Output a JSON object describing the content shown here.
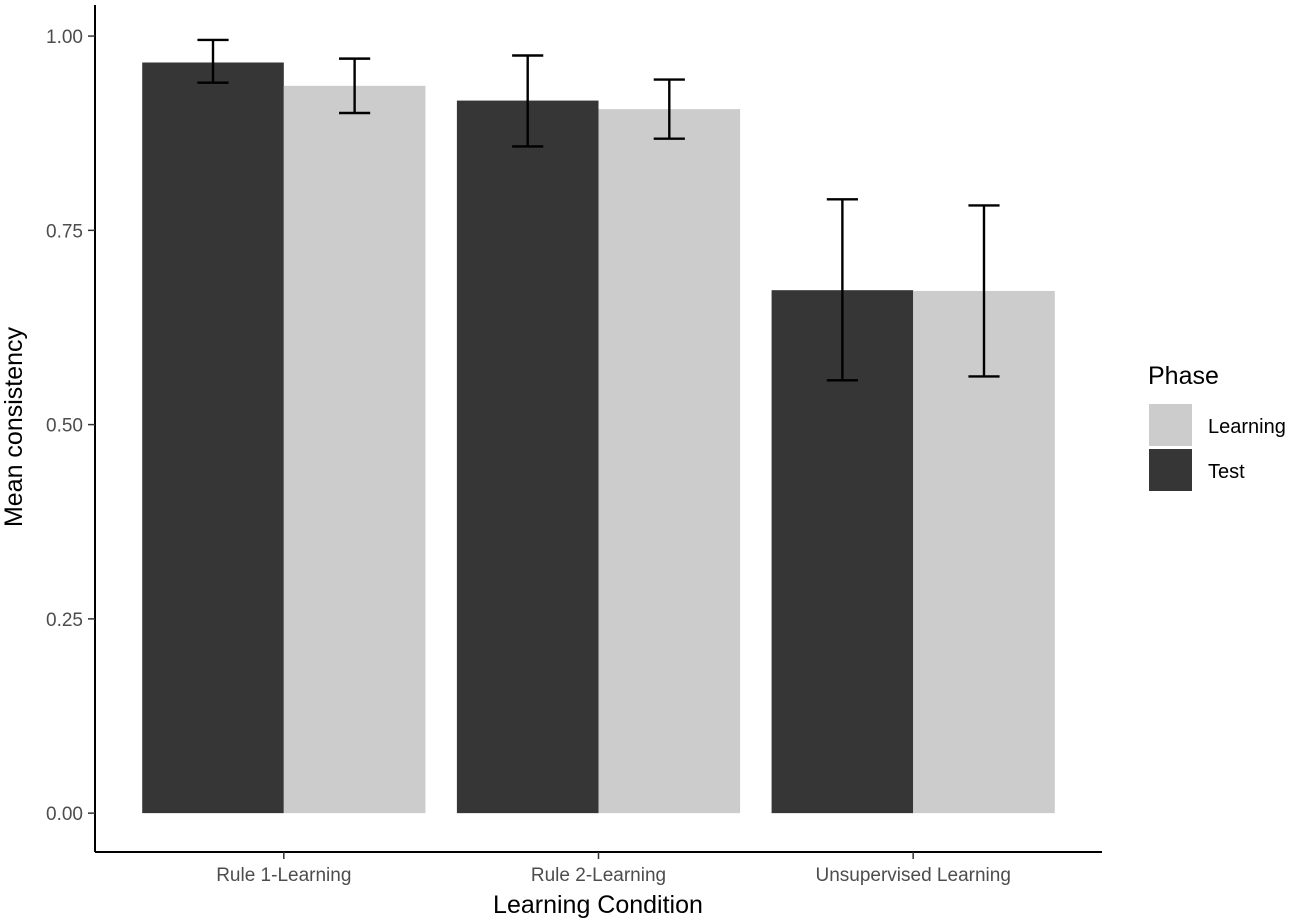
{
  "chart_data": {
    "type": "bar",
    "categories": [
      "Rule 1-Learning",
      "Rule 2-Learning",
      "Unsupervised Learning"
    ],
    "series": [
      {
        "name": "Test",
        "color": "#363636",
        "values": [
          0.966,
          0.917,
          0.673
        ],
        "error_low": [
          0.94,
          0.858,
          0.557
        ],
        "error_high": [
          0.995,
          0.975,
          0.79
        ]
      },
      {
        "name": "Learning",
        "color": "#cccccc",
        "values": [
          0.936,
          0.906,
          0.672
        ],
        "error_low": [
          0.901,
          0.868,
          0.562
        ],
        "error_high": [
          0.971,
          0.944,
          0.782
        ]
      }
    ],
    "ylim": [
      -0.05,
      1.04
    ],
    "yticks": [
      {
        "value": 0.0,
        "label": "0.00"
      },
      {
        "value": 0.25,
        "label": "0.25"
      },
      {
        "value": 0.5,
        "label": "0.50"
      },
      {
        "value": 0.75,
        "label": "0.75"
      },
      {
        "value": 1.0,
        "label": "1.00"
      }
    ],
    "xlabel": "Learning Condition",
    "ylabel": "Mean consistency",
    "grid": false,
    "legend": {
      "title": "Phase",
      "placement": "right",
      "entries": [
        {
          "label": "Learning",
          "color": "#cccccc"
        },
        {
          "label": "Test",
          "color": "#363636"
        }
      ]
    }
  }
}
